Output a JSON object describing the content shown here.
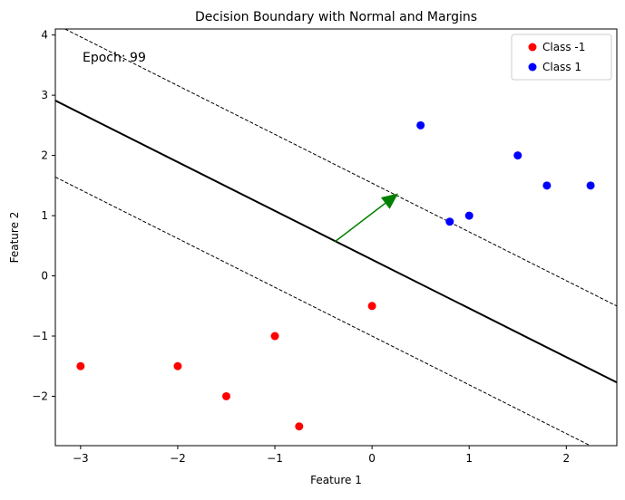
{
  "chart_data": {
    "type": "scatter",
    "title": "Decision Boundary with Normal and Margins",
    "xlabel": "Feature 1",
    "ylabel": "Feature 2",
    "xlim": [
      -3.26,
      2.52
    ],
    "ylim": [
      -2.82,
      4.1
    ],
    "grid": false,
    "legend_position": "top-right",
    "xticks": [
      -3,
      -2,
      -1,
      0,
      1,
      2
    ],
    "yticks": [
      -2,
      -1,
      0,
      1,
      2,
      3,
      4
    ],
    "xtick_labels": [
      "−3",
      "−2",
      "−1",
      "0",
      "1",
      "2"
    ],
    "ytick_labels": [
      "−2",
      "−1",
      "0",
      "1",
      "2",
      "3",
      "4"
    ],
    "series": [
      {
        "name": "Class -1",
        "color": "#ff0000",
        "points": [
          [
            -3,
            -1.5
          ],
          [
            -2,
            -1.5
          ],
          [
            -1.5,
            -2
          ],
          [
            -1,
            -1
          ],
          [
            -0.75,
            -2.5
          ],
          [
            0,
            -0.5
          ]
        ]
      },
      {
        "name": "Class 1",
        "color": "#0000ff",
        "points": [
          [
            0.5,
            2.5
          ],
          [
            0.8,
            0.9
          ],
          [
            1,
            1
          ],
          [
            1.5,
            2
          ],
          [
            1.8,
            1.5
          ],
          [
            2.25,
            1.5
          ]
        ]
      }
    ],
    "decision_boundary": {
      "slope": -0.81,
      "intercept": 0.27,
      "color": "#000000",
      "style": "solid"
    },
    "margins": [
      {
        "slope": -0.81,
        "intercept": 1.54,
        "color": "#000000",
        "style": "dashed"
      },
      {
        "slope": -0.81,
        "intercept": -1.0,
        "color": "#000000",
        "style": "dashed"
      }
    ],
    "normal_vector": {
      "from": [
        -0.38,
        0.57
      ],
      "to": [
        0.27,
        1.37
      ],
      "color": "#008000"
    },
    "annotation": {
      "text": "Epoch: 99"
    }
  }
}
